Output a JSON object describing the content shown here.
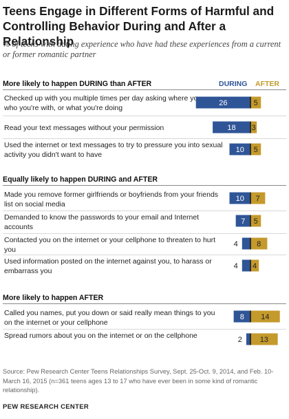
{
  "title": "Teens Engage in Different Forms of Harmful and Controlling Behavior During and After a Relationship",
  "subtitle": "% of teens with dating experience who have had these experiences from a current or former romantic partner",
  "column_headers": {
    "during": "DURING",
    "after": "AFTER"
  },
  "colors": {
    "during": "#2f5597",
    "after": "#c49a2c",
    "divider": "#1a1a1a"
  },
  "chart_data": {
    "type": "bar",
    "orientation": "horizontal",
    "stacked": true,
    "series": [
      {
        "name": "DURING",
        "color": "#2f5597"
      },
      {
        "name": "AFTER",
        "color": "#c49a2c"
      }
    ],
    "groups": [
      {
        "heading": "More likely to happen DURING than AFTER",
        "items": [
          {
            "label": "Checked up with you multiple times per day asking where you are, who you're with, or what you're doing",
            "during": 26,
            "after": 5
          },
          {
            "label": "Read your text messages without your permission",
            "during": 18,
            "after": 3
          },
          {
            "label": "Used the internet or text messages to try to pressure you into sexual activity you didn't want to have",
            "during": 10,
            "after": 5
          }
        ]
      },
      {
        "heading": "Equally likely to happen DURING and AFTER",
        "items": [
          {
            "label": "Made you remove former girlfriends or boyfriends from your friends list on social media",
            "during": 10,
            "after": 7
          },
          {
            "label": "Demanded to know the passwords to your email and Internet accounts",
            "during": 7,
            "after": 5
          },
          {
            "label": "Contacted you on the internet or your cellphone to threaten to hurt you",
            "during": 4,
            "after": 8
          },
          {
            "label": "Used information posted on the internet against you, to harass or embarrass you",
            "during": 4,
            "after": 4
          }
        ]
      },
      {
        "heading": "More likely to happen AFTER",
        "items": [
          {
            "label": "Called you names, put you down or said really mean things to you on the internet or your cellphone",
            "during": 8,
            "after": 14
          },
          {
            "label": "Spread rumors about you on the internet or on the cellphone",
            "during": 2,
            "after": 13
          }
        ]
      }
    ]
  },
  "source": "Source: Pew Research Center Teens Relationships Survey, Sept. 25-Oct. 9, 2014, and Feb. 10-March 16, 2015 (n=361 teens ages 13 to 17 who have ever been in some kind of romantic relationship).",
  "brand": "PEW RESEARCH CENTER"
}
